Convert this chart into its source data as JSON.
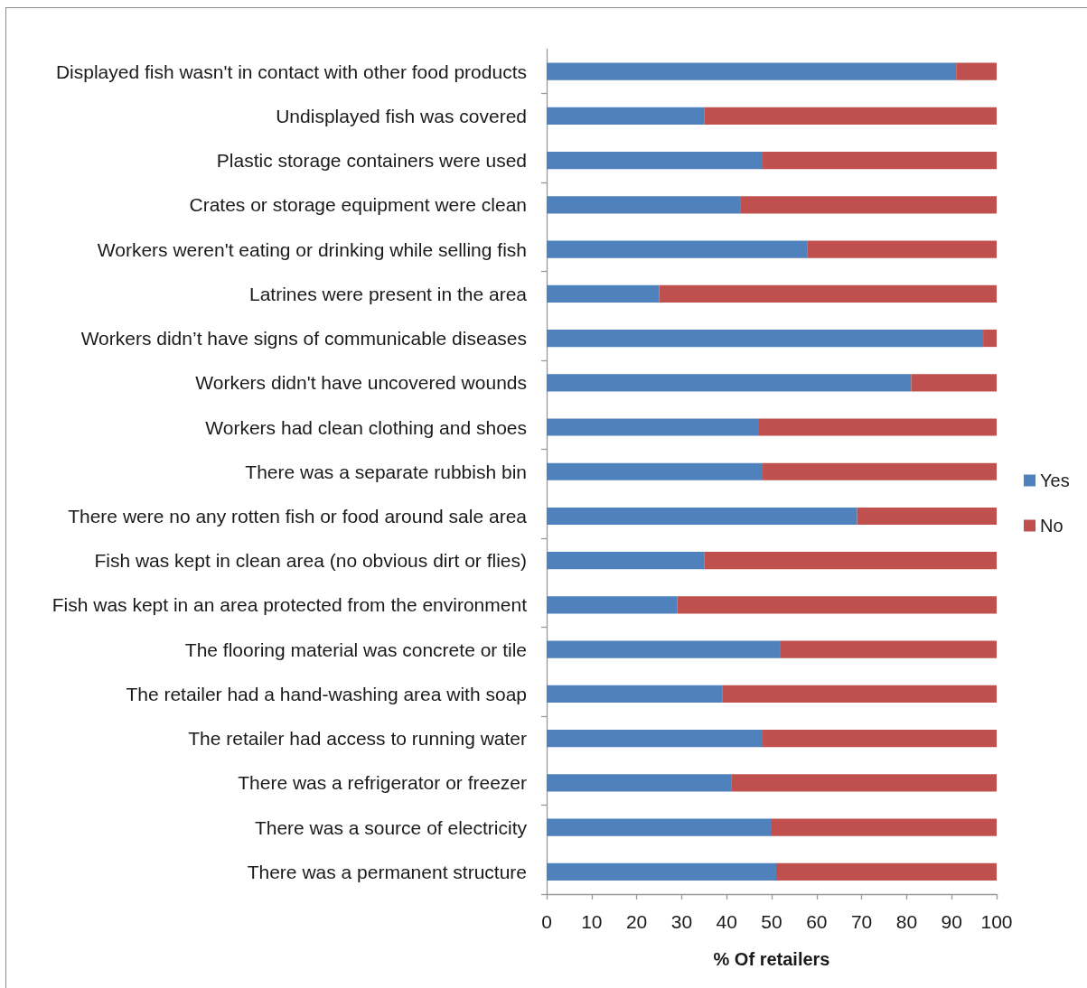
{
  "chart_data": {
    "type": "bar",
    "orientation": "horizontal",
    "stacked": true,
    "xlabel": "% Of retailers",
    "categories": [
      "Displayed fish wasn't in contact with other food products",
      "Undisplayed fish was covered",
      "Plastic storage containers were used",
      "Crates or storage equipment were clean",
      "Workers weren't eating or drinking while selling fish",
      "Latrines were present in the area",
      "Workers didn’t have signs of communicable diseases",
      "Workers didn't have uncovered wounds",
      "Workers had clean clothing and shoes",
      "There was a separate rubbish bin",
      "There were no any rotten fish or food around sale area",
      "Fish was kept in clean area (no obvious dirt or flies)",
      "Fish was kept in an area protected from the environment",
      "The flooring material was concrete or tile",
      "The retailer had a hand-washing area with soap",
      "The retailer had access to running water",
      "There was a refrigerator or freezer",
      "There was a source of electricity",
      "There was a permanent structure"
    ],
    "series": [
      {
        "name": "Yes",
        "color": "#4f81bd",
        "values": [
          91,
          35,
          48,
          43,
          58,
          25,
          97,
          81,
          47,
          48,
          69,
          35,
          29,
          52,
          39,
          48,
          41,
          50,
          51
        ]
      },
      {
        "name": "No",
        "color": "#c0504d",
        "values": [
          9,
          65,
          52,
          57,
          42,
          75,
          3,
          19,
          53,
          52,
          31,
          65,
          71,
          48,
          61,
          52,
          59,
          50,
          49
        ]
      }
    ],
    "xlim": [
      0,
      100
    ],
    "xticks": [
      0,
      10,
      20,
      30,
      40,
      50,
      60,
      70,
      80,
      90,
      100
    ],
    "grid": false,
    "legend": "right"
  }
}
